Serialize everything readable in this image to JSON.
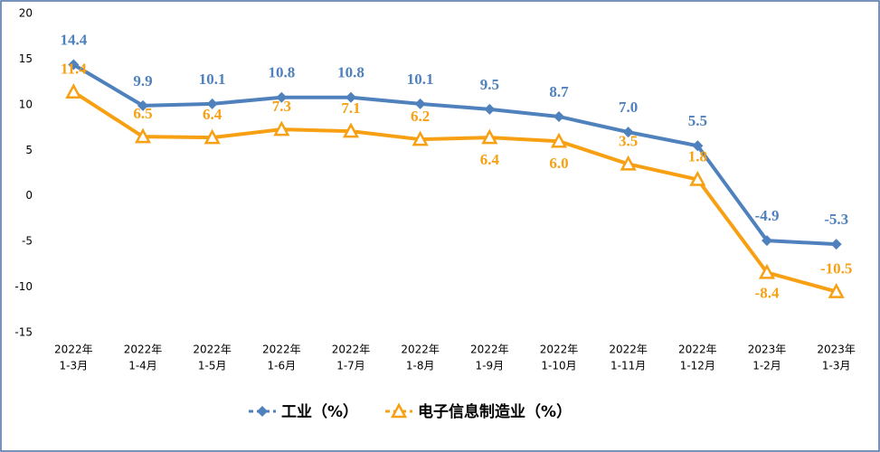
{
  "chart_data": {
    "type": "line",
    "categories": [
      [
        "2022年",
        "1-3月"
      ],
      [
        "2022年",
        "1-4月"
      ],
      [
        "2022年",
        "1-5月"
      ],
      [
        "2022年",
        "1-6月"
      ],
      [
        "2022年",
        "1-7月"
      ],
      [
        "2022年",
        "1-8月"
      ],
      [
        "2022年",
        "1-9月"
      ],
      [
        "2022年",
        "1-10月"
      ],
      [
        "2022年",
        "1-11月"
      ],
      [
        "2022年",
        "1-12月"
      ],
      [
        "2023年",
        "1-2月"
      ],
      [
        "2023年",
        "1-3月"
      ]
    ],
    "series": [
      {
        "name": "工业（%）",
        "color": "#4f81bd",
        "marker": "diamond",
        "values": [
          14.4,
          9.9,
          10.1,
          10.8,
          10.8,
          10.1,
          9.5,
          8.7,
          7.0,
          5.5,
          -4.9,
          -5.3
        ],
        "value_labels": [
          "14.4",
          "9.9",
          "10.1",
          "10.8",
          "10.8",
          "10.1",
          "9.5",
          "8.7",
          "7.0",
          "5.5",
          "-4.9",
          "-5.3"
        ]
      },
      {
        "name": "电子信息制造业（%）",
        "color": "#f7a014",
        "marker": "triangle",
        "values": [
          11.4,
          6.5,
          6.4,
          7.3,
          7.1,
          6.2,
          6.4,
          6.0,
          3.5,
          1.8,
          -8.4,
          -10.5
        ],
        "value_labels": [
          "11.4",
          "6.5",
          "6.4",
          "7.3",
          "7.1",
          "6.2",
          "6.4",
          "6.0",
          "3.5",
          "1.8",
          "-8.4",
          "-10.5"
        ]
      }
    ],
    "ylim": [
      -15,
      20
    ],
    "yticks": [
      -15,
      -10,
      -5,
      0,
      5,
      10,
      15,
      20
    ],
    "grid": false,
    "legend": "bottom"
  }
}
